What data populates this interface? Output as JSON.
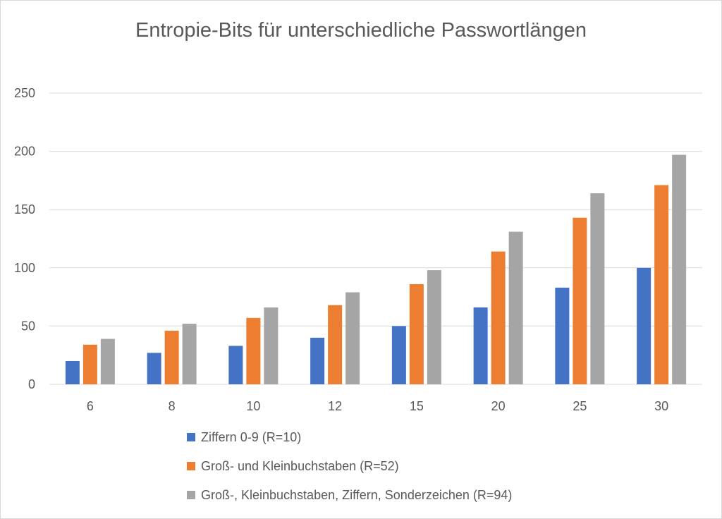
{
  "chart_data": {
    "type": "bar",
    "title": "Entropie-Bits für unterschiedliche Passwortlängen",
    "xlabel": "",
    "ylabel": "",
    "categories": [
      "6",
      "8",
      "10",
      "12",
      "15",
      "20",
      "25",
      "30"
    ],
    "ylim": [
      0,
      250
    ],
    "yticks": [
      0,
      50,
      100,
      150,
      200,
      250
    ],
    "grid": true,
    "legend_position": "bottom",
    "series": [
      {
        "name": "Ziffern 0-9 (R=10)",
        "color": "#4472c4",
        "values": [
          20,
          27,
          33,
          40,
          50,
          66,
          83,
          100
        ]
      },
      {
        "name": "Groß- und Kleinbuchstaben (R=52)",
        "color": "#ed7d31",
        "values": [
          34,
          46,
          57,
          68,
          86,
          114,
          143,
          171
        ]
      },
      {
        "name": "Groß-, Kleinbuchstaben, Ziffern, Sonderzeichen (R=94)",
        "color": "#a5a5a5",
        "values": [
          39,
          52,
          66,
          79,
          98,
          131,
          164,
          197
        ]
      }
    ]
  }
}
